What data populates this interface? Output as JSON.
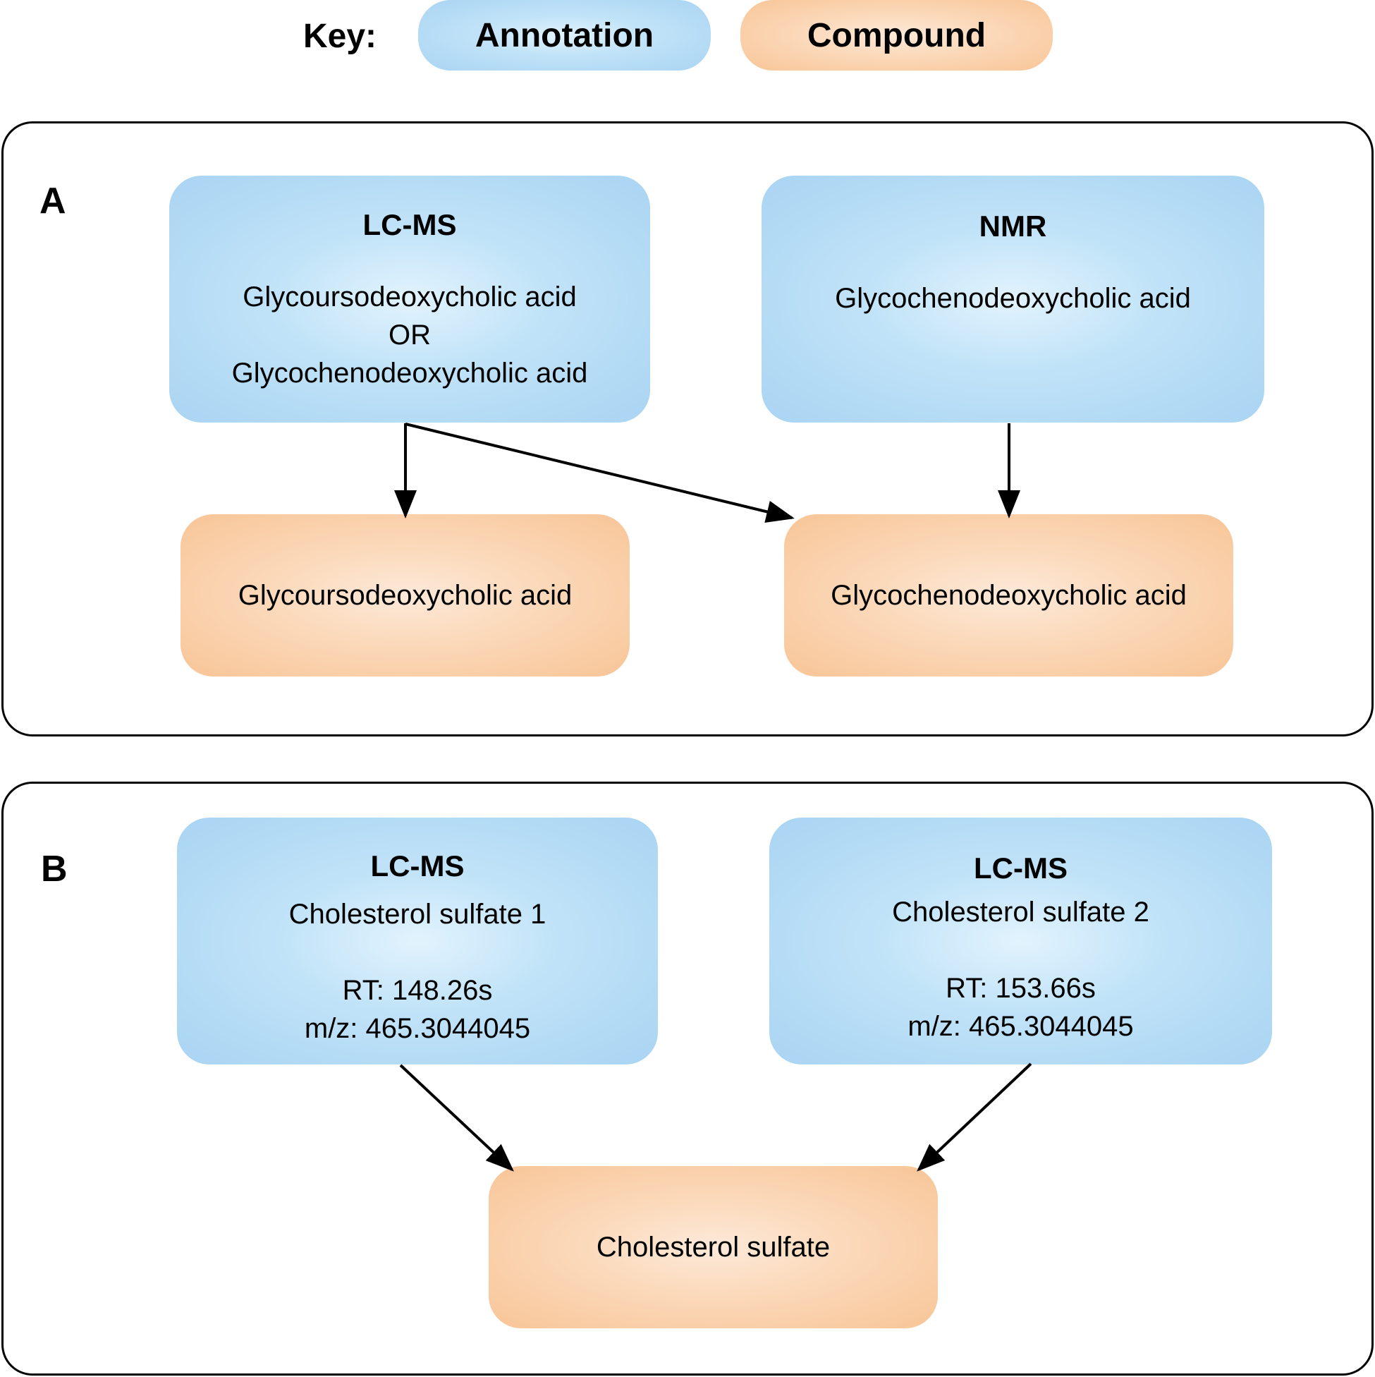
{
  "key": {
    "label": "Key:",
    "annotation": "Annotation",
    "compound": "Compound"
  },
  "colors": {
    "annotation": "#a9d4f2",
    "compound": "#f8c597",
    "line": "#000000"
  },
  "panelA": {
    "letter": "A",
    "lcms": {
      "title": "LC-MS",
      "line1": "Glycoursodeoxycholic acid",
      "line2": "OR",
      "line3": "Glycochenodeoxycholic acid"
    },
    "nmr": {
      "title": "NMR",
      "body": "Glycochenodeoxycholic acid"
    },
    "compound_left": "Glycoursodeoxycholic acid",
    "compound_right": "Glycochenodeoxycholic acid"
  },
  "panelB": {
    "letter": "B",
    "lcms1": {
      "title": "LC-MS",
      "name": "Cholesterol sulfate 1",
      "rt": "RT: 148.26s",
      "mz": "m/z: 465.3044045"
    },
    "lcms2": {
      "title": "LC-MS",
      "name": "Cholesterol sulfate 2",
      "rt": "RT: 153.66s",
      "mz": "m/z: 465.3044045"
    },
    "compound": "Cholesterol sulfate"
  }
}
